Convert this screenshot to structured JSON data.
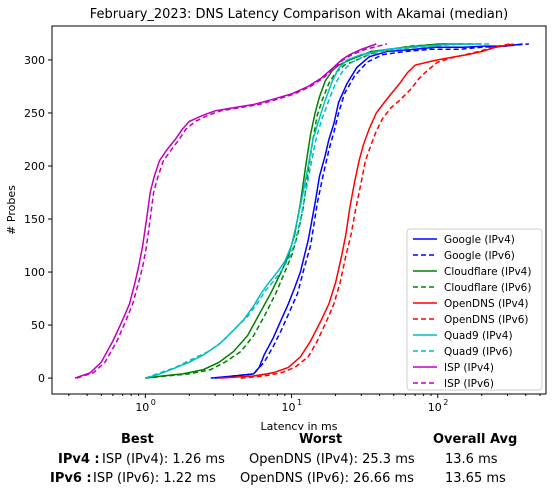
{
  "chart_data": {
    "type": "line",
    "title": "February_2023: DNS Latency Comparison with Akamai (median)",
    "xlabel": "Latency in ms",
    "ylabel": "# Probes",
    "xscale": "log",
    "xlim": [
      0.23,
      550
    ],
    "ylim": [
      -15,
      332
    ],
    "xticks": [
      {
        "value": 1,
        "label": "10^0"
      },
      {
        "value": 10,
        "label": "10^1"
      },
      {
        "value": 100,
        "label": "10^2"
      }
    ],
    "yticks": [
      0,
      50,
      100,
      150,
      200,
      250,
      300
    ],
    "legend_position": "lower-right",
    "series": [
      {
        "name": "Google (IPv4)",
        "color": "#0000ff",
        "style": "solid",
        "points": [
          [
            2.8,
            0
          ],
          [
            4,
            2
          ],
          [
            5.5,
            4
          ],
          [
            6,
            10
          ],
          [
            6.5,
            22
          ],
          [
            7.5,
            38
          ],
          [
            8.5,
            55
          ],
          [
            9.5,
            70
          ],
          [
            10.5,
            85
          ],
          [
            11.5,
            100
          ],
          [
            13,
            130
          ],
          [
            14.5,
            165
          ],
          [
            15.5,
            190
          ],
          [
            17,
            210
          ],
          [
            18,
            225
          ],
          [
            19.5,
            240
          ],
          [
            21,
            260
          ],
          [
            24,
            278
          ],
          [
            28,
            293
          ],
          [
            34,
            303
          ],
          [
            45,
            308
          ],
          [
            70,
            310
          ],
          [
            95,
            312
          ],
          [
            150,
            312
          ],
          [
            210,
            313
          ],
          [
            290,
            313
          ],
          [
            380,
            315
          ]
        ]
      },
      {
        "name": "Google (IPv6)",
        "color": "#0000ff",
        "style": "dashed",
        "points": [
          [
            3,
            0
          ],
          [
            4,
            2
          ],
          [
            5.5,
            4
          ],
          [
            6.5,
            15
          ],
          [
            7.5,
            30
          ],
          [
            8.5,
            45
          ],
          [
            9.5,
            60
          ],
          [
            11,
            80
          ],
          [
            12,
            100
          ],
          [
            13.5,
            125
          ],
          [
            15,
            165
          ],
          [
            16.5,
            192
          ],
          [
            18,
            215
          ],
          [
            19.5,
            232
          ],
          [
            21,
            250
          ],
          [
            23,
            268
          ],
          [
            27,
            285
          ],
          [
            33,
            298
          ],
          [
            42,
            305
          ],
          [
            60,
            308
          ],
          [
            90,
            310
          ],
          [
            140,
            310
          ],
          [
            200,
            312
          ],
          [
            280,
            313
          ],
          [
            420,
            315
          ]
        ]
      },
      {
        "name": "Cloudflare (IPv4)",
        "color": "#008000",
        "style": "solid",
        "points": [
          [
            1,
            0
          ],
          [
            1.3,
            2
          ],
          [
            1.8,
            4
          ],
          [
            2.5,
            8
          ],
          [
            3.2,
            15
          ],
          [
            4,
            25
          ],
          [
            5,
            40
          ],
          [
            6,
            60
          ],
          [
            7.2,
            80
          ],
          [
            8.5,
            100
          ],
          [
            9.5,
            115
          ],
          [
            10.5,
            135
          ],
          [
            11.5,
            165
          ],
          [
            12.5,
            200
          ],
          [
            13.5,
            230
          ],
          [
            14.5,
            250
          ],
          [
            15.5,
            265
          ],
          [
            17,
            280
          ],
          [
            19,
            290
          ],
          [
            21,
            295
          ],
          [
            25,
            300
          ],
          [
            35,
            308
          ],
          [
            60,
            312
          ],
          [
            100,
            315
          ],
          [
            150,
            315
          ]
        ]
      },
      {
        "name": "Cloudflare (IPv6)",
        "color": "#008000",
        "style": "dashed",
        "points": [
          [
            1,
            0
          ],
          [
            1.4,
            2
          ],
          [
            2,
            4
          ],
          [
            2.8,
            8
          ],
          [
            3.5,
            15
          ],
          [
            4.5,
            25
          ],
          [
            5.5,
            40
          ],
          [
            6.6,
            60
          ],
          [
            7.8,
            80
          ],
          [
            9,
            100
          ],
          [
            10,
            115
          ],
          [
            11,
            135
          ],
          [
            12,
            160
          ],
          [
            13,
            195
          ],
          [
            14,
            225
          ],
          [
            15,
            248
          ],
          [
            16.2,
            262
          ],
          [
            18,
            278
          ],
          [
            20,
            288
          ],
          [
            23,
            295
          ],
          [
            28,
            300
          ],
          [
            38,
            308
          ],
          [
            65,
            313
          ],
          [
            110,
            315
          ],
          [
            170,
            315
          ]
        ]
      },
      {
        "name": "OpenDNS (IPv4)",
        "color": "#ff0000",
        "style": "solid",
        "points": [
          [
            3.2,
            0
          ],
          [
            5.5,
            2
          ],
          [
            7.5,
            5
          ],
          [
            9.5,
            10
          ],
          [
            11.5,
            20
          ],
          [
            13.5,
            35
          ],
          [
            16,
            55
          ],
          [
            18,
            70
          ],
          [
            20,
            90
          ],
          [
            22,
            115
          ],
          [
            23.5,
            135
          ],
          [
            25,
            160
          ],
          [
            27,
            185
          ],
          [
            29,
            205
          ],
          [
            31,
            220
          ],
          [
            34,
            235
          ],
          [
            38,
            250
          ],
          [
            42,
            258
          ],
          [
            48,
            268
          ],
          [
            55,
            278
          ],
          [
            62,
            288
          ],
          [
            70,
            295
          ],
          [
            85,
            298
          ],
          [
            100,
            300
          ],
          [
            130,
            303
          ],
          [
            160,
            305
          ],
          [
            200,
            308
          ],
          [
            250,
            312
          ],
          [
            330,
            315
          ]
        ]
      },
      {
        "name": "OpenDNS (IPv6)",
        "color": "#ff0000",
        "style": "dashed",
        "points": [
          [
            4.5,
            0
          ],
          [
            6.5,
            2
          ],
          [
            8.5,
            5
          ],
          [
            10.5,
            10
          ],
          [
            13,
            20
          ],
          [
            15,
            35
          ],
          [
            17.5,
            55
          ],
          [
            19.5,
            70
          ],
          [
            21.5,
            90
          ],
          [
            23.5,
            115
          ],
          [
            25.5,
            135
          ],
          [
            27.5,
            160
          ],
          [
            30,
            185
          ],
          [
            32,
            205
          ],
          [
            35,
            220
          ],
          [
            38,
            233
          ],
          [
            42,
            245
          ],
          [
            48,
            255
          ],
          [
            55,
            262
          ],
          [
            65,
            272
          ],
          [
            75,
            283
          ],
          [
            85,
            290
          ],
          [
            100,
            298
          ],
          [
            125,
            302
          ],
          [
            155,
            305
          ],
          [
            190,
            308
          ],
          [
            240,
            312
          ],
          [
            310,
            315
          ]
        ]
      },
      {
        "name": "Quad9 (IPv4)",
        "color": "#00bfbf",
        "style": "solid",
        "points": [
          [
            1,
            0
          ],
          [
            1.2,
            3
          ],
          [
            1.5,
            8
          ],
          [
            2,
            15
          ],
          [
            2.5,
            22
          ],
          [
            3.2,
            32
          ],
          [
            4,
            45
          ],
          [
            4.7,
            55
          ],
          [
            5.5,
            68
          ],
          [
            6.2,
            80
          ],
          [
            7,
            90
          ],
          [
            8,
            100
          ],
          [
            9,
            110
          ],
          [
            10,
            125
          ],
          [
            11,
            150
          ],
          [
            12,
            175
          ],
          [
            13,
            200
          ],
          [
            14,
            225
          ],
          [
            15.5,
            245
          ],
          [
            17,
            262
          ],
          [
            19,
            280
          ],
          [
            21,
            292
          ],
          [
            24,
            300
          ],
          [
            30,
            305
          ],
          [
            45,
            310
          ],
          [
            80,
            313
          ],
          [
            130,
            315
          ],
          [
            200,
            315
          ]
        ]
      },
      {
        "name": "Quad9 (IPv6)",
        "color": "#00bfbf",
        "style": "dashed",
        "points": [
          [
            1,
            0
          ],
          [
            1.2,
            4
          ],
          [
            1.6,
            10
          ],
          [
            2.1,
            18
          ],
          [
            2.7,
            25
          ],
          [
            3.4,
            35
          ],
          [
            4.2,
            48
          ],
          [
            5,
            58
          ],
          [
            5.8,
            70
          ],
          [
            6.6,
            82
          ],
          [
            7.6,
            92
          ],
          [
            8.6,
            102
          ],
          [
            9.6,
            113
          ],
          [
            10.6,
            128
          ],
          [
            11.6,
            152
          ],
          [
            12.6,
            178
          ],
          [
            13.6,
            202
          ],
          [
            14.8,
            227
          ],
          [
            16.2,
            245
          ],
          [
            18,
            262
          ],
          [
            20,
            278
          ],
          [
            22.5,
            290
          ],
          [
            26,
            298
          ],
          [
            32,
            304
          ],
          [
            50,
            310
          ],
          [
            90,
            313
          ],
          [
            150,
            315
          ],
          [
            230,
            315
          ]
        ]
      },
      {
        "name": "ISP (IPv4)",
        "color": "#bf00bf",
        "style": "solid",
        "points": [
          [
            0.33,
            0
          ],
          [
            0.42,
            5
          ],
          [
            0.5,
            15
          ],
          [
            0.6,
            35
          ],
          [
            0.7,
            55
          ],
          [
            0.78,
            70
          ],
          [
            0.85,
            90
          ],
          [
            0.9,
            105
          ],
          [
            0.96,
            125
          ],
          [
            1.02,
            150
          ],
          [
            1.08,
            175
          ],
          [
            1.15,
            190
          ],
          [
            1.25,
            205
          ],
          [
            1.4,
            215
          ],
          [
            1.6,
            225
          ],
          [
            1.8,
            235
          ],
          [
            2,
            242
          ],
          [
            2.5,
            248
          ],
          [
            3,
            252
          ],
          [
            4,
            255
          ],
          [
            5.5,
            258
          ],
          [
            7.5,
            263
          ],
          [
            10,
            268
          ],
          [
            13,
            275
          ],
          [
            16,
            283
          ],
          [
            19,
            292
          ],
          [
            22,
            300
          ],
          [
            25,
            305
          ],
          [
            30,
            310
          ],
          [
            38,
            315
          ]
        ]
      },
      {
        "name": "ISP (IPv6)",
        "color": "#bf00bf",
        "style": "dashed",
        "points": [
          [
            0.34,
            0
          ],
          [
            0.44,
            5
          ],
          [
            0.53,
            15
          ],
          [
            0.64,
            35
          ],
          [
            0.74,
            55
          ],
          [
            0.82,
            70
          ],
          [
            0.9,
            90
          ],
          [
            0.96,
            105
          ],
          [
            1.02,
            125
          ],
          [
            1.08,
            150
          ],
          [
            1.14,
            175
          ],
          [
            1.22,
            190
          ],
          [
            1.33,
            205
          ],
          [
            1.5,
            215
          ],
          [
            1.7,
            225
          ],
          [
            1.9,
            235
          ],
          [
            2.2,
            242
          ],
          [
            2.7,
            248
          ],
          [
            3.3,
            252
          ],
          [
            4.4,
            255
          ],
          [
            6,
            258
          ],
          [
            8,
            263
          ],
          [
            10.5,
            268
          ],
          [
            13.5,
            275
          ],
          [
            16.5,
            283
          ],
          [
            19.5,
            292
          ],
          [
            22.5,
            300
          ],
          [
            26,
            305
          ],
          [
            32,
            310
          ],
          [
            45,
            315
          ]
        ]
      }
    ]
  },
  "summary": {
    "headers": {
      "best": "Best",
      "worst": "Worst",
      "avg": "Overall Avg"
    },
    "rows": [
      {
        "label": "IPv4 :",
        "best": "ISP (IPv4): 1.26 ms",
        "worst": "OpenDNS (IPv4): 25.3 ms",
        "avg": "13.6 ms"
      },
      {
        "label": "IPv6 :",
        "best": "ISP (IPv6): 1.22 ms",
        "worst": "OpenDNS (IPv6): 26.66 ms",
        "avg": "13.65 ms"
      }
    ]
  }
}
